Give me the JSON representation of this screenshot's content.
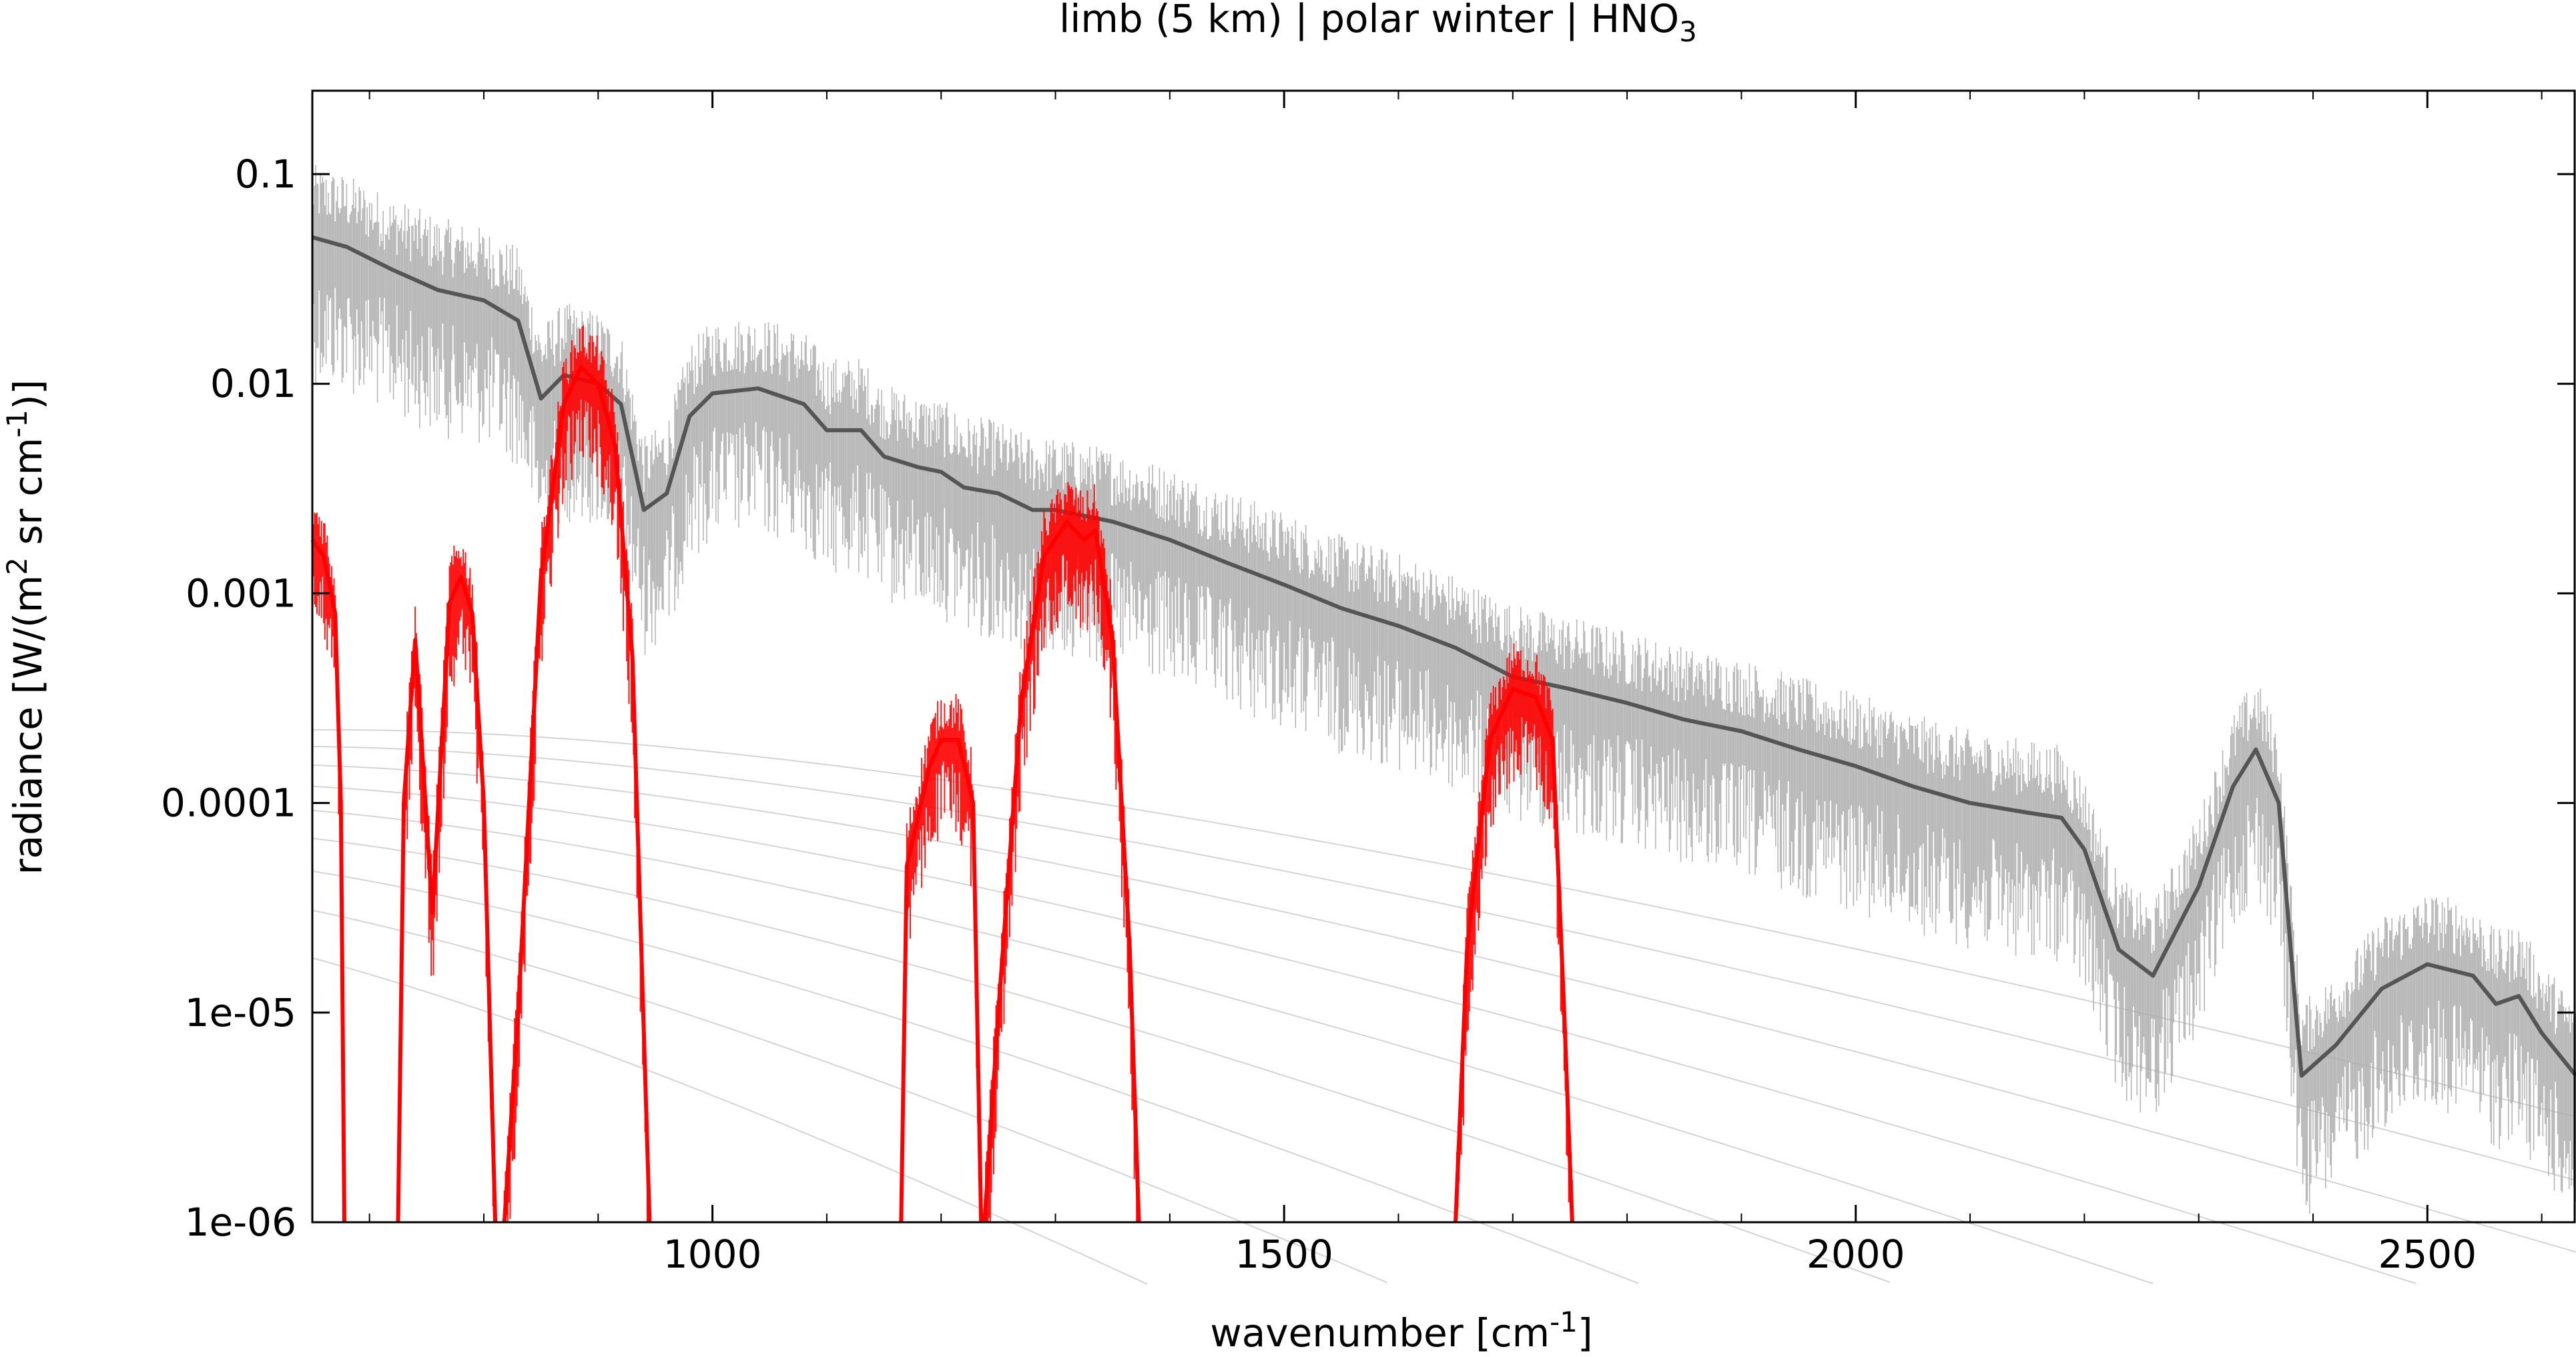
{
  "chart_data": {
    "type": "line",
    "title": "limb (5 km) | polar winter | HNO",
    "title_subscript": "3",
    "xlabel": "wavenumber [cm",
    "xlabel_sup": "-1",
    "xlabel_end": "]",
    "ylabel_parts": [
      "radiance [W/(m",
      "2",
      " sr cm",
      "-1",
      ")]"
    ],
    "y_scale": "log",
    "xlim": [
      650,
      2630
    ],
    "ylim": [
      1e-06,
      0.25
    ],
    "x_ticks": [
      1000,
      1500,
      2000,
      2500
    ],
    "x_tick_labels": [
      "1000",
      "1500",
      "2000",
      "2500"
    ],
    "y_ticks": [
      0.1,
      0.01,
      0.001,
      0.0001,
      1e-05,
      1e-06
    ],
    "y_tick_labels": [
      "0.1",
      "0.01",
      "0.001",
      "0.0001",
      "1e-05",
      "1e-06"
    ],
    "grid": false,
    "colors": {
      "total": "#555555",
      "total_light": "#a9a9a9",
      "hno3": "#ff0000",
      "planck": "#d4d4d4"
    },
    "planck_temperatures_K": [
      180,
      200,
      220,
      240,
      260,
      280,
      300,
      320,
      340
    ],
    "series": [
      {
        "role": "total-radiance",
        "points": [
          [
            650,
            0.05
          ],
          [
            680,
            0.045
          ],
          [
            720,
            0.035
          ],
          [
            760,
            0.028
          ],
          [
            800,
            0.025
          ],
          [
            830,
            0.02
          ],
          [
            850,
            0.0085
          ],
          [
            870,
            0.011
          ],
          [
            900,
            0.01
          ],
          [
            920,
            0.008
          ],
          [
            940,
            0.0025
          ],
          [
            960,
            0.003
          ],
          [
            980,
            0.007
          ],
          [
            1000,
            0.009
          ],
          [
            1040,
            0.0095
          ],
          [
            1080,
            0.008
          ],
          [
            1100,
            0.006
          ],
          [
            1130,
            0.006
          ],
          [
            1150,
            0.0045
          ],
          [
            1180,
            0.004
          ],
          [
            1200,
            0.0038
          ],
          [
            1220,
            0.0032
          ],
          [
            1250,
            0.003
          ],
          [
            1280,
            0.0025
          ],
          [
            1300,
            0.0025
          ],
          [
            1350,
            0.0022
          ],
          [
            1400,
            0.0018
          ],
          [
            1450,
            0.0014
          ],
          [
            1500,
            0.0011
          ],
          [
            1550,
            0.00085
          ],
          [
            1600,
            0.0007
          ],
          [
            1650,
            0.00055
          ],
          [
            1700,
            0.0004
          ],
          [
            1750,
            0.00035
          ],
          [
            1800,
            0.0003
          ],
          [
            1850,
            0.00025
          ],
          [
            1900,
            0.00022
          ],
          [
            1950,
            0.00018
          ],
          [
            2000,
            0.00015
          ],
          [
            2050,
            0.00012
          ],
          [
            2100,
            0.0001
          ],
          [
            2150,
            9e-05
          ],
          [
            2180,
            8.5e-05
          ],
          [
            2200,
            6e-05
          ],
          [
            2230,
            2e-05
          ],
          [
            2260,
            1.5e-05
          ],
          [
            2300,
            4e-05
          ],
          [
            2330,
            0.00012
          ],
          [
            2350,
            0.00018
          ],
          [
            2370,
            0.0001
          ],
          [
            2385,
            1e-05
          ],
          [
            2390,
            5e-06
          ],
          [
            2420,
            7e-06
          ],
          [
            2460,
            1.3e-05
          ],
          [
            2500,
            1.7e-05
          ],
          [
            2540,
            1.5e-05
          ],
          [
            2560,
            1.1e-05
          ],
          [
            2580,
            1.2e-05
          ],
          [
            2600,
            8e-06
          ],
          [
            2630,
            5e-06
          ]
        ]
      },
      {
        "role": "hno3-radiance-band-1",
        "points": [
          [
            650,
            0.0018
          ],
          [
            660,
            0.0015
          ],
          [
            670,
            0.0008
          ],
          [
            675,
            0.0001
          ],
          [
            678,
            1e-06
          ]
        ]
      },
      {
        "role": "hno3-radiance-band-2",
        "points": [
          [
            725,
            1e-06
          ],
          [
            730,
            0.0001
          ],
          [
            740,
            0.0006
          ],
          [
            755,
            3e-05
          ],
          [
            770,
            0.0009
          ],
          [
            780,
            0.0012
          ],
          [
            790,
            0.0008
          ],
          [
            800,
            0.0001
          ],
          [
            810,
            1e-06
          ]
        ]
      },
      {
        "role": "hno3-radiance-band-3",
        "points": [
          [
            818,
            1e-06
          ],
          [
            830,
            1e-05
          ],
          [
            850,
            0.0012
          ],
          [
            870,
            0.008
          ],
          [
            885,
            0.012
          ],
          [
            900,
            0.01
          ],
          [
            915,
            0.005
          ],
          [
            930,
            0.0005
          ],
          [
            945,
            1e-06
          ]
        ]
      },
      {
        "role": "hno3-radiance-band-4",
        "points": [
          [
            1165,
            1e-06
          ],
          [
            1170,
            5e-05
          ],
          [
            1190,
            0.00015
          ],
          [
            1200,
            0.0002
          ],
          [
            1215,
            0.0002
          ],
          [
            1228,
            0.0001
          ],
          [
            1235,
            1e-06
          ]
        ]
      },
      {
        "role": "hno3-radiance-band-5",
        "points": [
          [
            1238,
            1e-06
          ],
          [
            1250,
            1e-05
          ],
          [
            1270,
            0.0003
          ],
          [
            1290,
            0.0015
          ],
          [
            1310,
            0.0022
          ],
          [
            1325,
            0.0018
          ],
          [
            1335,
            0.002
          ],
          [
            1350,
            0.0006
          ],
          [
            1365,
            2e-05
          ],
          [
            1373,
            1e-06
          ]
        ]
      },
      {
        "role": "hno3-radiance-band-6",
        "points": [
          [
            1650,
            1e-06
          ],
          [
            1660,
            2e-05
          ],
          [
            1680,
            0.0002
          ],
          [
            1700,
            0.00035
          ],
          [
            1720,
            0.00032
          ],
          [
            1735,
            0.0002
          ],
          [
            1745,
            1e-05
          ],
          [
            1752,
            1e-06
          ]
        ]
      }
    ]
  }
}
